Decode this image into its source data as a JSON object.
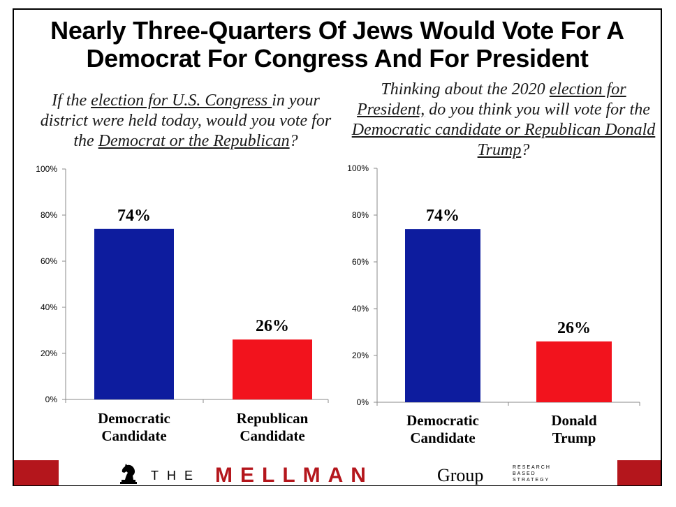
{
  "title": "Nearly Three-Quarters Of Jews Would Vote For A Democrat For Congress And For President",
  "colors": {
    "democrat": "#0d1c9e",
    "republican": "#f2131d",
    "footer": "#b4161c"
  },
  "question_left": {
    "p1": "If the ",
    "u1": "election for U.S. Congress ",
    "p2": "in your district were held today, would you vote for the ",
    "u2": "Democrat or the Republican",
    "p3": "?"
  },
  "question_right": {
    "p1": "Thinking about the 2020 ",
    "u1": "election for President,",
    "p2": " do you think you will vote for the ",
    "u2": "Democratic candidate or Republican Donald Trump",
    "p3": "?"
  },
  "chart_data": [
    {
      "type": "bar",
      "categories": [
        [
          "Democratic",
          "Candidate"
        ],
        [
          "Republican",
          "Candidate"
        ]
      ],
      "values": [
        74,
        26
      ],
      "data_labels": [
        "74%",
        "26%"
      ],
      "ylim": [
        0,
        100
      ],
      "yticks": [
        0,
        20,
        40,
        60,
        80,
        100
      ],
      "ytick_labels": [
        "0%",
        "20%",
        "40%",
        "60%",
        "80%",
        "100%"
      ],
      "grid": false
    },
    {
      "type": "bar",
      "categories": [
        [
          "Democratic",
          "Candidate"
        ],
        [
          "Donald",
          "Trump"
        ]
      ],
      "values": [
        74,
        26
      ],
      "data_labels": [
        "74%",
        "26%"
      ],
      "ylim": [
        0,
        100
      ],
      "yticks": [
        0,
        20,
        40,
        60,
        80,
        100
      ],
      "ytick_labels": [
        "0%",
        "20%",
        "40%",
        "60%",
        "80%",
        "100%"
      ],
      "grid": false
    }
  ],
  "footer": {
    "the": "THE",
    "mellman": "MELLMAN",
    "group": "Group",
    "tagline": [
      "RESEARCH",
      "BASED",
      "STRATEGY"
    ]
  }
}
